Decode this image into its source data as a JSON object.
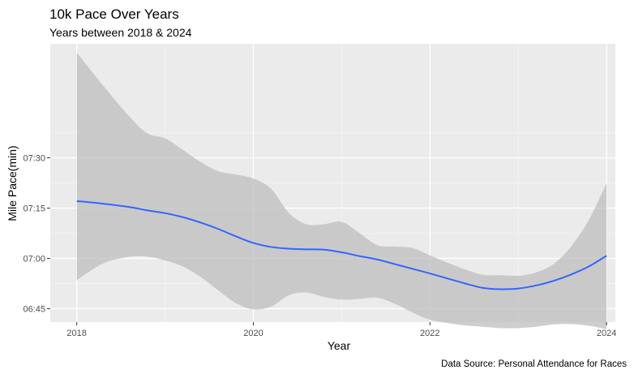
{
  "chart_data": {
    "type": "line",
    "title": "10k Pace Over Years",
    "subtitle": "Years between 2018 & 2024",
    "xlabel": "Year",
    "ylabel": "Mile Pace(min)",
    "caption": "Data Source: Personal Attendance for Races",
    "xlim": [
      2017.7,
      2024.1
    ],
    "ylim": [
      401,
      484
    ],
    "x_ticks": [
      2018,
      2020,
      2022,
      2024
    ],
    "x_tick_labels": [
      "2018",
      "2020",
      "2022",
      "2024"
    ],
    "y_ticks": [
      405,
      420,
      435,
      450
    ],
    "y_tick_labels": [
      "06:45",
      "07:00",
      "07:15",
      "07:30"
    ],
    "grid": true,
    "series": [
      {
        "line_color": "#3366ff",
        "ribbon_color": "#bdbdbd",
        "x": [
          2018.0,
          2018.3,
          2018.6,
          2018.8,
          2019.0,
          2019.2,
          2019.4,
          2019.6,
          2019.8,
          2020.0,
          2020.2,
          2020.4,
          2020.6,
          2020.8,
          2021.0,
          2021.2,
          2021.4,
          2021.6,
          2021.8,
          2022.0,
          2022.2,
          2022.4,
          2022.6,
          2022.8,
          2023.0,
          2023.2,
          2023.4,
          2023.6,
          2023.8,
          2024.0
        ],
        "y": [
          437.1,
          436.3,
          435.3,
          434.3,
          433.5,
          432.3,
          430.7,
          428.8,
          426.6,
          424.6,
          423.4,
          422.9,
          422.7,
          422.6,
          421.8,
          420.7,
          419.7,
          418.3,
          416.9,
          415.5,
          414.0,
          412.5,
          411.2,
          410.8,
          411.0,
          411.9,
          413.3,
          415.2,
          417.6,
          420.8
        ],
        "lower": [
          413.5,
          418.5,
          420.5,
          420.5,
          419.4,
          417.6,
          414.5,
          410.5,
          406.7,
          404.8,
          405.6,
          409.0,
          409.8,
          408.5,
          407.7,
          407.9,
          408.3,
          406.5,
          403.9,
          401.7,
          400.7,
          400.0,
          399.6,
          399.2,
          399.2,
          399.6,
          400.3,
          400.4,
          399.9,
          398.9
        ],
        "upper": [
          481.4,
          471.5,
          462.2,
          457.3,
          455.8,
          452.4,
          448.8,
          446.0,
          445.0,
          443.8,
          440.8,
          433.6,
          430.2,
          430.2,
          430.9,
          427.6,
          424.0,
          423.5,
          423.1,
          420.9,
          418.7,
          416.7,
          415.1,
          415.0,
          414.8,
          415.8,
          418.3,
          423.6,
          431.5,
          442.4
        ]
      }
    ]
  }
}
